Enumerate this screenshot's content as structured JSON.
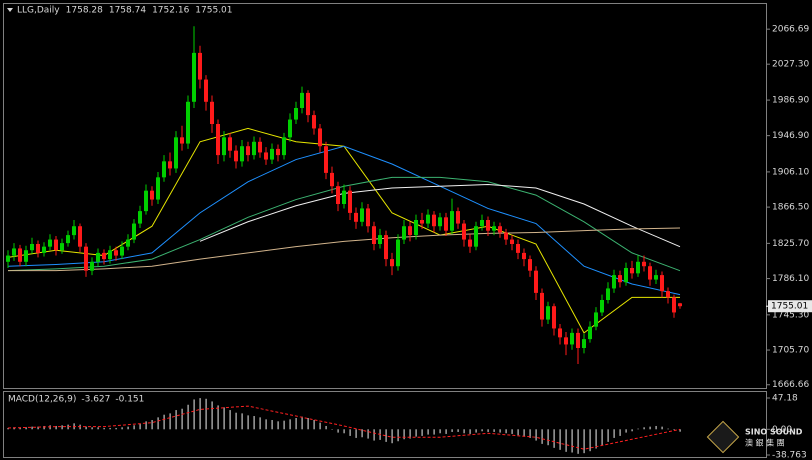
{
  "chart_data": [
    {
      "type": "candlestick",
      "title": "LLG,Daily",
      "up_color": "#00d000",
      "down_color": "#ff1a1a",
      "ylim": [
        1663,
        2095
      ],
      "yticks": [
        2066.69,
        {
          "value": 2027.3,
          "label": "2027.30"
        },
        {
          "value": 1986.9,
          "label": "1986.90"
        },
        {
          "value": 1946.9,
          "label": "1946.90"
        },
        {
          "value": 1906.1,
          "label": "1906.10"
        },
        {
          "value": 1866.5,
          "label": "1866.50"
        },
        {
          "value": 1825.7,
          "label": "1825.70"
        },
        {
          "value": 1786.1,
          "label": "1786.10"
        },
        {
          "value": 1745.3,
          "label": "1745.30"
        },
        {
          "value": 1705.7,
          "label": "1705.70"
        },
        1666.66
      ],
      "open": [
        1805,
        1812,
        1820,
        1805,
        1818,
        1825,
        1815,
        1822,
        1830,
        1818,
        1826,
        1835,
        1845,
        1822,
        1795,
        1805,
        1815,
        1808,
        1818,
        1812,
        1822,
        1830,
        1848,
        1862,
        1885,
        1875,
        1900,
        1918,
        1910,
        1945,
        1938,
        1985,
        2040,
        2010,
        1985,
        1960,
        1925,
        1945,
        1930,
        1918,
        1935,
        1925,
        1940,
        1928,
        1920,
        1932,
        1925,
        1945,
        1965,
        1978,
        1995,
        1970,
        1955,
        1935,
        1905,
        1890,
        1870,
        1885,
        1860,
        1850,
        1865,
        1845,
        1825,
        1835,
        1808,
        1800,
        1830,
        1845,
        1835,
        1852,
        1848,
        1858,
        1845,
        1855,
        1840,
        1862,
        1848,
        1830,
        1822,
        1845,
        1852,
        1840,
        1845,
        1838,
        1830,
        1825,
        1815,
        1808,
        1795,
        1770,
        1740,
        1755,
        1730,
        1720,
        1712,
        1725,
        1708,
        1718,
        1732,
        1748,
        1762,
        1775,
        1790,
        1782,
        1798,
        1792,
        1805,
        1800,
        1785,
        1790,
        1772,
        1765,
        1758.28
      ],
      "high": [
        1818,
        1826,
        1824,
        1823,
        1832,
        1829,
        1827,
        1836,
        1834,
        1831,
        1840,
        1852,
        1848,
        1826,
        1810,
        1820,
        1819,
        1823,
        1822,
        1828,
        1836,
        1853,
        1868,
        1892,
        1890,
        1906,
        1925,
        1928,
        1952,
        1958,
        1992,
        2070,
        2048,
        2015,
        1992,
        1965,
        1952,
        1950,
        1936,
        1942,
        1940,
        1946,
        1945,
        1934,
        1938,
        1937,
        1950,
        1972,
        1985,
        2002,
        1998,
        1975,
        1960,
        1940,
        1912,
        1895,
        1892,
        1890,
        1866,
        1872,
        1870,
        1850,
        1842,
        1840,
        1815,
        1836,
        1852,
        1850,
        1858,
        1860,
        1864,
        1862,
        1860,
        1860,
        1876,
        1866,
        1852,
        1836,
        1850,
        1858,
        1856,
        1850,
        1849,
        1842,
        1835,
        1830,
        1820,
        1812,
        1800,
        1775,
        1760,
        1758,
        1735,
        1726,
        1730,
        1730,
        1724,
        1738,
        1754,
        1768,
        1782,
        1796,
        1795,
        1804,
        1806,
        1812,
        1812,
        1804,
        1796,
        1794,
        1776,
        1768,
        1758.74
      ],
      "low": [
        1798,
        1806,
        1800,
        1800,
        1814,
        1810,
        1811,
        1818,
        1812,
        1814,
        1822,
        1830,
        1816,
        1788,
        1790,
        1800,
        1802,
        1803,
        1806,
        1808,
        1818,
        1826,
        1843,
        1858,
        1868,
        1870,
        1895,
        1902,
        1905,
        1930,
        1932,
        1978,
        2000,
        1975,
        1950,
        1915,
        1918,
        1922,
        1910,
        1912,
        1918,
        1920,
        1922,
        1914,
        1915,
        1918,
        1920,
        1940,
        1960,
        1972,
        1962,
        1948,
        1928,
        1898,
        1882,
        1862,
        1865,
        1852,
        1842,
        1845,
        1838,
        1818,
        1820,
        1800,
        1790,
        1795,
        1825,
        1828,
        1830,
        1842,
        1843,
        1838,
        1840,
        1834,
        1836,
        1842,
        1822,
        1815,
        1818,
        1840,
        1834,
        1835,
        1832,
        1824,
        1818,
        1808,
        1800,
        1788,
        1762,
        1732,
        1735,
        1722,
        1712,
        1700,
        1706,
        1690,
        1702,
        1714,
        1728,
        1744,
        1758,
        1770,
        1776,
        1778,
        1786,
        1788,
        1794,
        1778,
        1780,
        1765,
        1758,
        1742,
        1752.16
      ],
      "close": [
        1812,
        1820,
        1805,
        1818,
        1825,
        1815,
        1822,
        1830,
        1818,
        1826,
        1835,
        1845,
        1822,
        1795,
        1805,
        1815,
        1808,
        1818,
        1812,
        1822,
        1830,
        1848,
        1862,
        1885,
        1875,
        1900,
        1918,
        1910,
        1945,
        1938,
        1985,
        2040,
        2010,
        1985,
        1960,
        1925,
        1945,
        1930,
        1918,
        1935,
        1925,
        1940,
        1928,
        1920,
        1932,
        1925,
        1945,
        1965,
        1978,
        1995,
        1970,
        1955,
        1935,
        1905,
        1890,
        1870,
        1885,
        1860,
        1850,
        1865,
        1845,
        1825,
        1835,
        1808,
        1800,
        1830,
        1845,
        1835,
        1852,
        1848,
        1858,
        1845,
        1855,
        1840,
        1862,
        1848,
        1830,
        1822,
        1845,
        1852,
        1840,
        1845,
        1838,
        1830,
        1825,
        1815,
        1808,
        1795,
        1770,
        1740,
        1755,
        1730,
        1720,
        1712,
        1725,
        1708,
        1718,
        1732,
        1748,
        1762,
        1775,
        1790,
        1782,
        1798,
        1792,
        1805,
        1800,
        1785,
        1790,
        1772,
        1765,
        1748,
        1755.01
      ],
      "series": [
        {
          "color": "#e6e600",
          "x": [
            0,
            8,
            16,
            24,
            32,
            40,
            48,
            56,
            64,
            72,
            80,
            88,
            96,
            104,
            112
          ],
          "values": [
            1810,
            1818,
            1812,
            1845,
            1940,
            1955,
            1940,
            1935,
            1860,
            1835,
            1845,
            1825,
            1725,
            1765,
            1765
          ]
        },
        {
          "color": "#1e90ff",
          "x": [
            0,
            8,
            16,
            24,
            32,
            40,
            48,
            56,
            64,
            72,
            80,
            88,
            96,
            104,
            112
          ],
          "values": [
            1800,
            1802,
            1805,
            1815,
            1860,
            1895,
            1920,
            1935,
            1915,
            1890,
            1865,
            1848,
            1800,
            1780,
            1768
          ]
        },
        {
          "color": "#3cb371",
          "x": [
            0,
            8,
            16,
            24,
            32,
            40,
            48,
            56,
            64,
            72,
            80,
            88,
            96,
            104,
            112
          ],
          "values": [
            1795,
            1797,
            1800,
            1808,
            1830,
            1855,
            1875,
            1890,
            1900,
            1900,
            1895,
            1880,
            1850,
            1815,
            1795
          ]
        },
        {
          "color": "#f0f0f0",
          "x": [
            0,
            8,
            16,
            24,
            32,
            40,
            48,
            56,
            64,
            72,
            80,
            88,
            96,
            104,
            112
          ],
          "values": [
            null,
            null,
            null,
            null,
            1828,
            1850,
            1868,
            1882,
            1888,
            1890,
            1892,
            1888,
            1870,
            1845,
            1822
          ]
        },
        {
          "color": "#d2b48c",
          "x": [
            0,
            8,
            16,
            24,
            32,
            40,
            48,
            56,
            64,
            72,
            80,
            88,
            96,
            104,
            112
          ],
          "values": [
            1795,
            1795,
            1797,
            1800,
            1808,
            1815,
            1822,
            1828,
            1832,
            1835,
            1837,
            1838,
            1840,
            1842,
            1843
          ]
        }
      ]
    },
    {
      "type": "bar",
      "title": "MACD(12,26,9)",
      "color": "#c8c8c8",
      "ylim": [
        -38.763,
        47.18
      ],
      "yticks": [
        47.18,
        {
          "value": 0,
          "label": "0.00"
        },
        -38.763
      ],
      "values": [
        2,
        3,
        2,
        3,
        4,
        4,
        5,
        6,
        5,
        6,
        7,
        9,
        7,
        4,
        3,
        3,
        2,
        2,
        2,
        3,
        4,
        6,
        8,
        12,
        14,
        18,
        22,
        24,
        29,
        31,
        37,
        45,
        47,
        46,
        42,
        36,
        33,
        29,
        25,
        24,
        21,
        20,
        18,
        15,
        14,
        12,
        13,
        15,
        17,
        19,
        17,
        14,
        10,
        5,
        0,
        -5,
        -6,
        -10,
        -13,
        -12,
        -14,
        -17,
        -16,
        -19,
        -21,
        -18,
        -15,
        -14,
        -11,
        -10,
        -8,
        -8,
        -6,
        -7,
        -4,
        -4,
        -6,
        -7,
        -5,
        -3,
        -4,
        -4,
        -5,
        -6,
        -7,
        -9,
        -11,
        -13,
        -17,
        -22,
        -24,
        -28,
        -31,
        -34,
        -35,
        -37,
        -36,
        -33,
        -29,
        -24,
        -19,
        -13,
        -10,
        -5,
        -3,
        1,
        3,
        4,
        5,
        4,
        1,
        -1,
        -3.627
      ],
      "series": [
        {
          "color": "#ff2020",
          "x": [
            0,
            8,
            16,
            24,
            32,
            40,
            48,
            56,
            64,
            72,
            80,
            88,
            96,
            104,
            112
          ],
          "values": [
            2,
            4,
            4,
            10,
            30,
            35,
            20,
            5,
            -12,
            -12,
            -6,
            -12,
            -30,
            -15,
            -0.151
          ]
        }
      ]
    }
  ],
  "logo": {
    "name": "SINO SOUND",
    "subtitle": "澳 銀 集 團"
  }
}
